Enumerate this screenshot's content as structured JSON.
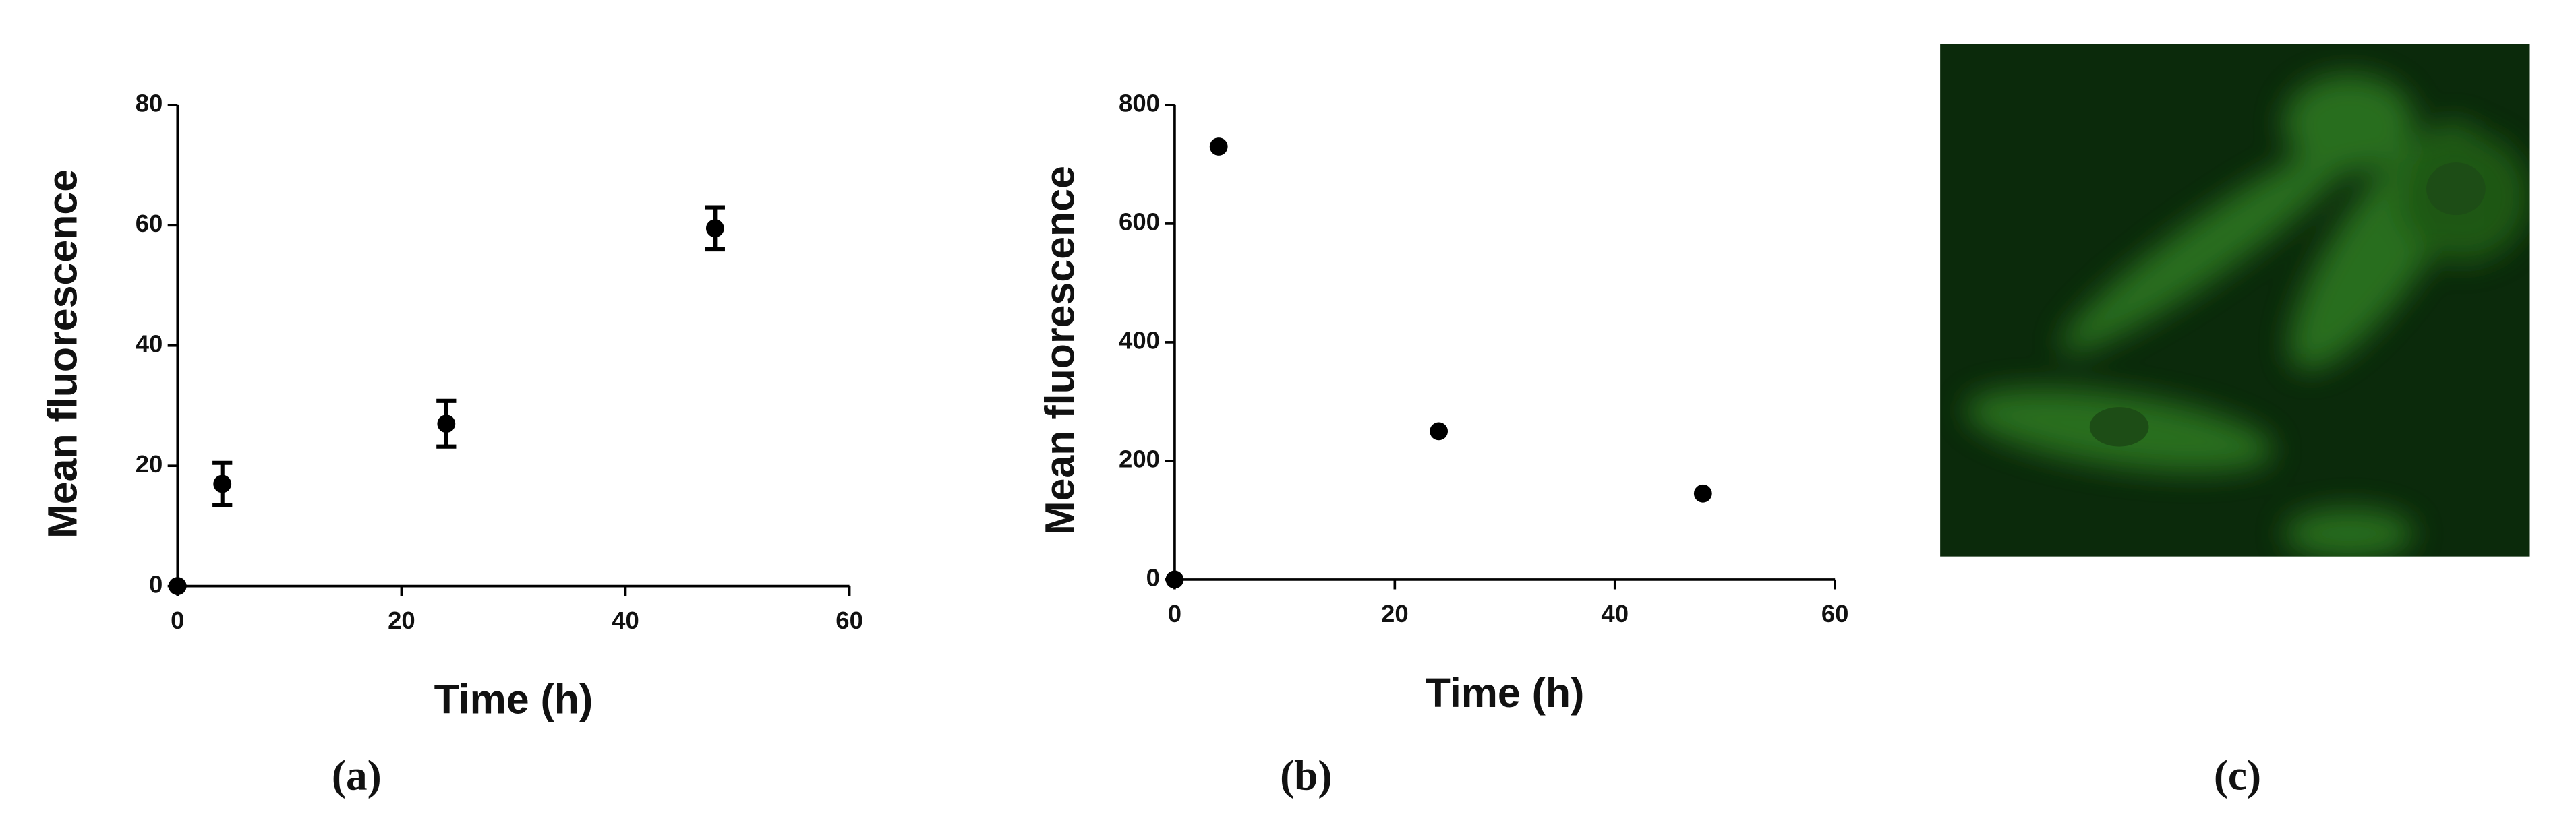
{
  "chart_data": [
    {
      "type": "scatter",
      "x": [
        0,
        4,
        24,
        48
      ],
      "values": [
        0,
        17,
        27,
        59.5
      ],
      "errors": [
        0,
        3.5,
        3.8,
        3.5
      ],
      "xlim": [
        0,
        60
      ],
      "ylim": [
        0,
        80
      ],
      "xticks": [
        0,
        20,
        40,
        60
      ],
      "yticks": [
        0,
        20,
        40,
        60,
        80
      ],
      "xlabel": "Time (h)",
      "ylabel": "Mean fluorescence",
      "color": "#000000"
    },
    {
      "type": "scatter",
      "x": [
        0,
        4,
        24,
        48
      ],
      "values": [
        0,
        730,
        250,
        145
      ],
      "xlim": [
        0,
        60
      ],
      "ylim": [
        0,
        800
      ],
      "xticks": [
        0,
        20,
        40,
        60
      ],
      "yticks": [
        0,
        200,
        400,
        600,
        800
      ],
      "xlabel": "Time (h)",
      "ylabel": "Mean fluorescence",
      "color": "#000000"
    }
  ],
  "panel_labels": [
    "(a)",
    "(b)",
    "(c)"
  ]
}
